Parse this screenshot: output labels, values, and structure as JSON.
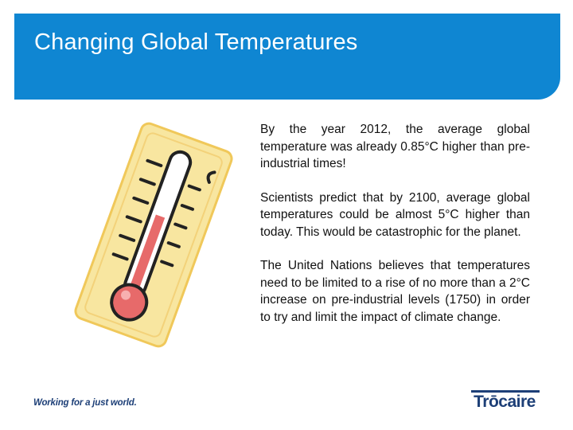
{
  "slide": {
    "title": "Changing Global Temperatures",
    "paragraphs": [
      "By the year 2012, the average global temperature was already 0.85°C higher than pre-industrial times!",
      "Scientists predict that by 2100, average global temperatures could be almost 5°C higher than today. This would be catastrophic for the planet.",
      "The United Nations believes that temperatures need to be limited to a rise of no more than a 2°C increase on pre-industrial levels (1750) in order to try and limit the impact of climate change."
    ],
    "illustration_icon": "thermometer-icon"
  },
  "footer": {
    "tagline": "Working for a just world.",
    "logo_text": "Trōcaire"
  },
  "colors": {
    "header_blue": "#0f86d2",
    "brand_navy": "#1d3f77",
    "thermo_red": "#e76a6a",
    "thermo_yellow": "#f8e6a0"
  }
}
